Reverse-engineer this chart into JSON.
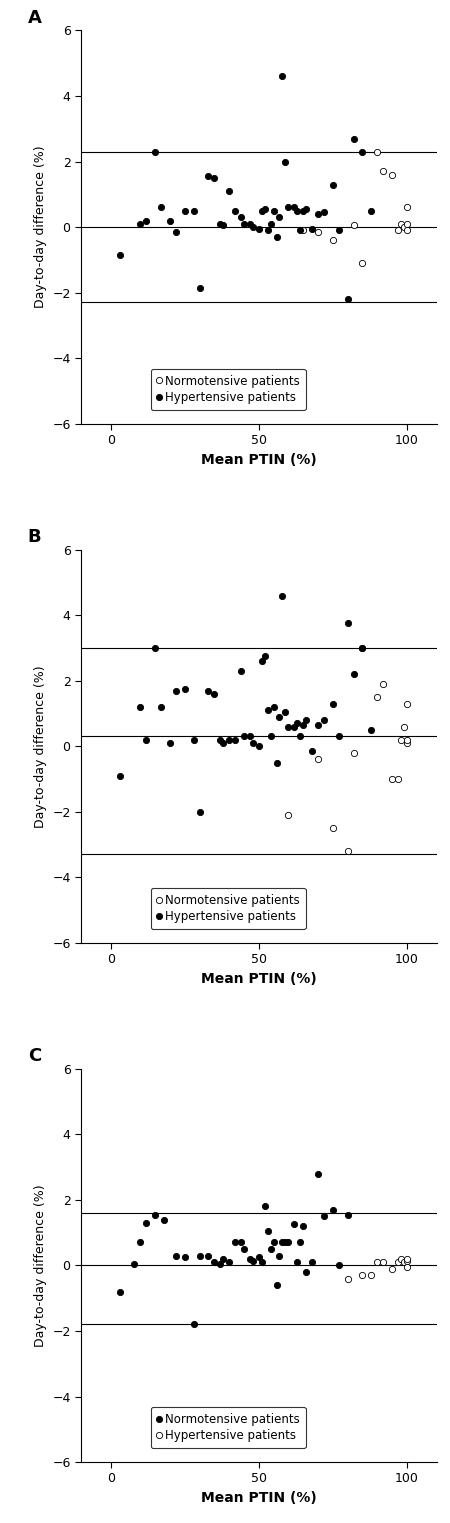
{
  "panels": [
    {
      "label": "A",
      "hline_mean": 0.0,
      "hline_upper": 2.3,
      "hline_lower": -2.3,
      "legend_open_label": "Normotensive patients",
      "legend_filled_label": "Hypertensive patients",
      "filled_first": false,
      "hyper_x": [
        3,
        10,
        12,
        15,
        17,
        20,
        22,
        25,
        28,
        30,
        33,
        35,
        37,
        38,
        40,
        42,
        44,
        45,
        47,
        48,
        50,
        51,
        52,
        53,
        54,
        55,
        56,
        57,
        58,
        59,
        60,
        62,
        63,
        64,
        65,
        66,
        68,
        70,
        72,
        75,
        77,
        80,
        82,
        85,
        88
      ],
      "hyper_y": [
        -0.85,
        0.1,
        0.2,
        2.3,
        0.6,
        0.2,
        -0.15,
        0.5,
        0.5,
        -1.85,
        1.55,
        1.5,
        0.1,
        0.05,
        1.1,
        0.5,
        0.3,
        0.1,
        0.1,
        0.0,
        -0.05,
        0.5,
        0.55,
        -0.1,
        0.1,
        0.5,
        -0.3,
        0.3,
        4.6,
        2.0,
        0.6,
        0.6,
        0.5,
        -0.1,
        0.5,
        0.55,
        -0.05,
        0.4,
        0.45,
        1.3,
        -0.1,
        -2.2,
        2.7,
        2.3,
        0.5
      ],
      "normo_x": [
        65,
        70,
        75,
        82,
        85,
        90,
        92,
        95,
        97,
        98,
        99,
        100,
        100,
        100
      ],
      "normo_y": [
        -0.1,
        -0.15,
        -0.4,
        0.05,
        -1.1,
        2.3,
        1.7,
        1.6,
        -0.1,
        0.1,
        0.0,
        0.6,
        0.1,
        -0.1
      ]
    },
    {
      "label": "B",
      "hline_mean": 0.3,
      "hline_upper": 3.0,
      "hline_lower": -3.3,
      "legend_open_label": "Normotensive patients",
      "legend_filled_label": "Hypertensive patients",
      "filled_first": false,
      "hyper_x": [
        3,
        10,
        12,
        15,
        17,
        20,
        22,
        25,
        28,
        30,
        33,
        35,
        37,
        38,
        40,
        42,
        44,
        45,
        47,
        48,
        50,
        51,
        52,
        53,
        54,
        55,
        56,
        57,
        58,
        59,
        60,
        62,
        63,
        64,
        65,
        66,
        68,
        70,
        72,
        75,
        77,
        80,
        82,
        85,
        88
      ],
      "hyper_y": [
        -0.9,
        1.2,
        0.2,
        3.0,
        1.2,
        0.1,
        1.7,
        1.75,
        0.2,
        -2.0,
        1.7,
        1.6,
        0.2,
        0.1,
        0.2,
        0.2,
        2.3,
        0.3,
        0.3,
        0.1,
        0.0,
        2.6,
        2.75,
        1.1,
        0.3,
        1.2,
        -0.5,
        0.9,
        4.6,
        1.05,
        0.6,
        0.6,
        0.7,
        0.3,
        0.65,
        0.8,
        -0.15,
        0.65,
        0.8,
        1.3,
        0.3,
        3.75,
        2.2,
        3.0,
        0.5
      ],
      "normo_x": [
        60,
        70,
        75,
        80,
        82,
        85,
        90,
        92,
        95,
        97,
        98,
        99,
        100,
        100,
        100
      ],
      "normo_y": [
        -2.1,
        -0.4,
        -2.5,
        -3.2,
        -0.2,
        3.0,
        1.5,
        1.9,
        -1.0,
        -1.0,
        0.2,
        0.6,
        1.3,
        0.1,
        0.2
      ]
    },
    {
      "label": "C",
      "hline_mean": 0.0,
      "hline_upper": 1.6,
      "hline_lower": -1.8,
      "legend_open_label": "Hypertensive patients",
      "legend_filled_label": "Normotensive patients",
      "filled_first": true,
      "hyper_x": [
        3,
        8,
        10,
        12,
        15,
        18,
        22,
        25,
        28,
        30,
        33,
        35,
        37,
        38,
        40,
        42,
        44,
        45,
        47,
        48,
        50,
        51,
        52,
        53,
        54,
        55,
        56,
        57,
        58,
        59,
        60,
        62,
        63,
        64,
        65,
        66,
        68,
        70,
        72,
        75,
        77,
        80
      ],
      "hyper_y": [
        -0.8,
        0.05,
        0.7,
        1.3,
        1.55,
        1.4,
        0.3,
        0.25,
        -1.8,
        0.3,
        0.3,
        0.1,
        0.05,
        0.2,
        0.1,
        0.7,
        0.7,
        0.5,
        0.2,
        0.15,
        0.25,
        0.1,
        1.8,
        1.05,
        0.5,
        0.7,
        -0.6,
        0.3,
        0.7,
        0.7,
        0.7,
        1.25,
        0.1,
        0.7,
        1.2,
        -0.2,
        0.1,
        2.8,
        1.5,
        1.7,
        0.0,
        1.55
      ],
      "normo_x": [
        80,
        85,
        88,
        90,
        92,
        95,
        97,
        98,
        99,
        100,
        100,
        100
      ],
      "normo_y": [
        -0.4,
        -0.3,
        -0.3,
        0.1,
        0.1,
        -0.1,
        0.1,
        0.2,
        0.1,
        0.15,
        -0.05,
        0.2
      ]
    }
  ],
  "xlim": [
    -10,
    110
  ],
  "ylim": [
    -6,
    6
  ],
  "yticks": [
    -6,
    -4,
    -2,
    0,
    2,
    4,
    6
  ],
  "xticks": [
    0,
    50,
    100
  ],
  "xlabel": "Mean PTIN (%)",
  "ylabel": "Day-to-day difference (%)",
  "marker_size": 4.5,
  "linewidth": 0.8,
  "bg_color": "#ffffff"
}
